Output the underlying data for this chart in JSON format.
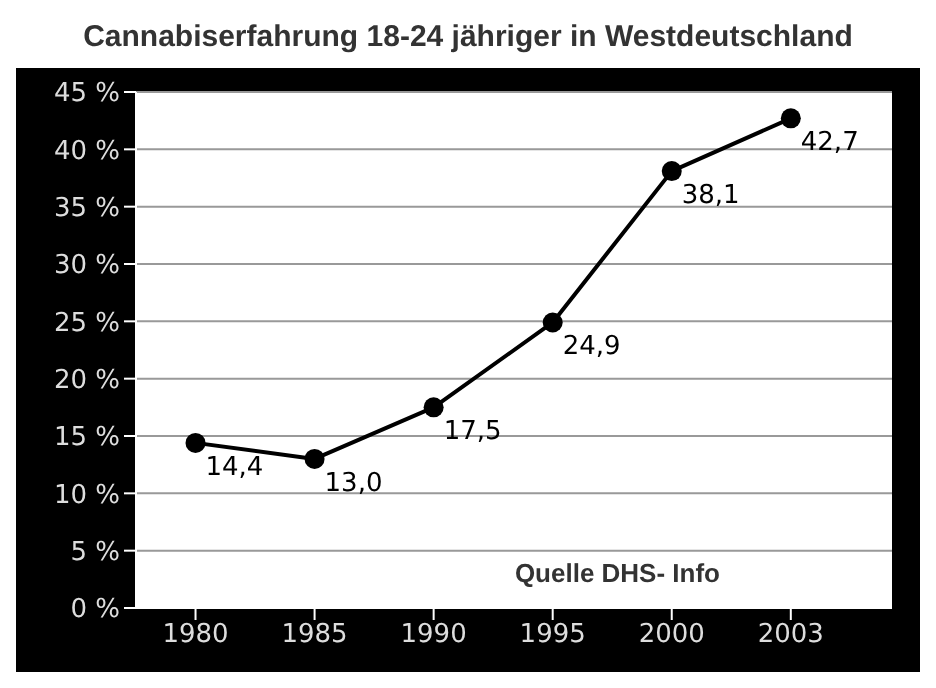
{
  "chart_data": {
    "type": "line",
    "title": "Cannabiserfahrung 18-24 jähriger in Westdeutschland",
    "categories": [
      "1980",
      "1985",
      "1990",
      "1995",
      "2000",
      "2003"
    ],
    "series": [
      {
        "color": "#000000",
        "values": [
          14.4,
          13.0,
          17.5,
          24.9,
          38.1,
          42.7
        ],
        "value_labels": [
          "14,4",
          "13,0",
          "17,5",
          "24,9",
          "38,1",
          "42,7"
        ]
      }
    ],
    "ylim": [
      0,
      45
    ],
    "yticks": [
      {
        "value": 0,
        "label": "0 %"
      },
      {
        "value": 5,
        "label": "5 %"
      },
      {
        "value": 10,
        "label": "10 %"
      },
      {
        "value": 15,
        "label": "15 %"
      },
      {
        "value": 20,
        "label": "20 %"
      },
      {
        "value": 25,
        "label": "25 %"
      },
      {
        "value": 30,
        "label": "30 %"
      },
      {
        "value": 35,
        "label": "35 %"
      },
      {
        "value": 40,
        "label": "40 %"
      },
      {
        "value": 45,
        "label": "45 %"
      }
    ],
    "grid": "y",
    "marker": "circle",
    "line_style": "solid",
    "annotations": [
      "Quelle DHS- Info"
    ]
  }
}
